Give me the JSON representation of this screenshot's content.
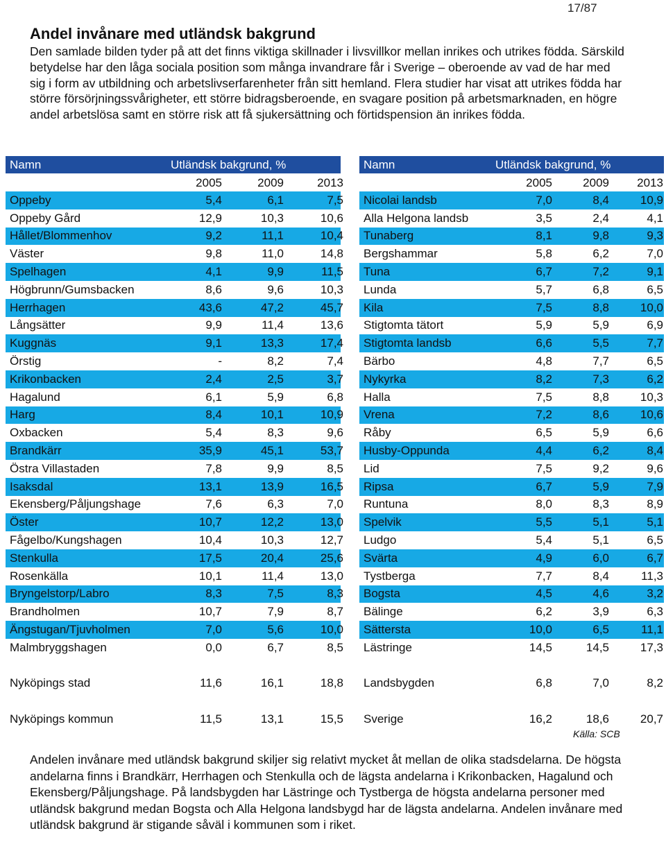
{
  "page_number": "17/87",
  "title": "Andel invånare med utländsk bakgrund",
  "intro": "Den samlade bilden tyder på att det finns viktiga skillnader i livsvillkor mellan inrikes och utrikes födda. Särskild betydelse har den låga sociala position som många invandrare får i Sverige – oberoende av vad de har med sig i form av utbildning och arbetslivserfarenheter från sitt hemland. Flera studier har visat att utrikes födda har större försörjningssvårigheter, ett större bidragsberoende, en svagare position på arbetsmarknaden, en högre andel arbetslösa samt en större risk att få sjukersättning och förtidspension än inrikes födda.",
  "table_headers": {
    "name": "Namn",
    "share": "Utländsk bakgrund, %",
    "y1": "2005",
    "y2": "2009",
    "y3": "2013"
  },
  "left_rows": [
    [
      "Oppeby",
      "5,4",
      "6,1",
      "7,5"
    ],
    [
      "Oppeby Gård",
      "12,9",
      "10,3",
      "10,6"
    ],
    [
      "Hållet/Blommenhov",
      "9,2",
      "11,1",
      "10,4"
    ],
    [
      "Väster",
      "9,8",
      "11,0",
      "14,8"
    ],
    [
      "Spelhagen",
      "4,1",
      "9,9",
      "11,5"
    ],
    [
      "Högbrunn/Gumsbacken",
      "8,6",
      "9,6",
      "10,3"
    ],
    [
      "Herrhagen",
      "43,6",
      "47,2",
      "45,7"
    ],
    [
      "Långsätter",
      "9,9",
      "11,4",
      "13,6"
    ],
    [
      "Kuggnäs",
      "9,1",
      "13,3",
      "17,4"
    ],
    [
      "Örstig",
      "-",
      "8,2",
      "7,4"
    ],
    [
      "Krikonbacken",
      "2,4",
      "2,5",
      "3,7"
    ],
    [
      "Hagalund",
      "6,1",
      "5,9",
      "6,8"
    ],
    [
      "Harg",
      "8,4",
      "10,1",
      "10,9"
    ],
    [
      "Oxbacken",
      "5,4",
      "8,3",
      "9,6"
    ],
    [
      "Brandkärr",
      "35,9",
      "45,1",
      "53,7"
    ],
    [
      "Östra Villastaden",
      "7,8",
      "9,9",
      "8,5"
    ],
    [
      "Isaksdal",
      "13,1",
      "13,9",
      "16,5"
    ],
    [
      "Ekensberg/Påljungshage",
      "7,6",
      "6,3",
      "7,0"
    ],
    [
      "Öster",
      "10,7",
      "12,2",
      "13,0"
    ],
    [
      "Fågelbo/Kungshagen",
      "10,4",
      "10,3",
      "12,7"
    ],
    [
      "Stenkulla",
      "17,5",
      "20,4",
      "25,6"
    ],
    [
      "Rosenkälla",
      "10,1",
      "11,4",
      "13,0"
    ],
    [
      "Bryngelstorp/Labro",
      "8,3",
      "7,5",
      "8,3"
    ],
    [
      "Brandholmen",
      "10,7",
      "7,9",
      "8,7"
    ],
    [
      "Ängstugan/Tjuvholmen",
      "7,0",
      "5,6",
      "10,0"
    ],
    [
      "Malmbryggshagen",
      "0,0",
      "6,7",
      "8,5"
    ]
  ],
  "right_rows": [
    [
      "Nicolai landsb",
      "7,0",
      "8,4",
      "10,9"
    ],
    [
      "Alla Helgona landsb",
      "3,5",
      "2,4",
      "4,1"
    ],
    [
      "Tunaberg",
      "8,1",
      "9,8",
      "9,3"
    ],
    [
      "Bergshammar",
      "5,8",
      "6,2",
      "7,0"
    ],
    [
      "Tuna",
      "6,7",
      "7,2",
      "9,1"
    ],
    [
      "Lunda",
      "5,7",
      "6,8",
      "6,5"
    ],
    [
      "Kila",
      "7,5",
      "8,8",
      "10,0"
    ],
    [
      "Stigtomta tätort",
      "5,9",
      "5,9",
      "6,9"
    ],
    [
      "Stigtomta landsb",
      "6,6",
      "5,5",
      "7,7"
    ],
    [
      "Bärbo",
      "4,8",
      "7,7",
      "6,5"
    ],
    [
      "Nykyrka",
      "8,2",
      "7,3",
      "6,2"
    ],
    [
      "Halla",
      "7,5",
      "8,8",
      "10,3"
    ],
    [
      "Vrena",
      "7,2",
      "8,6",
      "10,6"
    ],
    [
      "Råby",
      "6,5",
      "5,9",
      "6,6"
    ],
    [
      "Husby-Oppunda",
      "4,4",
      "6,2",
      "8,4"
    ],
    [
      "Lid",
      "7,5",
      "9,2",
      "9,6"
    ],
    [
      "Ripsa",
      "6,7",
      "5,9",
      "7,9"
    ],
    [
      "Runtuna",
      "8,0",
      "8,3",
      "8,9"
    ],
    [
      "Spelvik",
      "5,5",
      "5,1",
      "5,1"
    ],
    [
      "Ludgo",
      "5,4",
      "5,1",
      "6,5"
    ],
    [
      "Svärta",
      "4,9",
      "6,0",
      "6,7"
    ],
    [
      "Tystberga",
      "7,7",
      "8,4",
      "11,3"
    ],
    [
      "Bogsta",
      "4,5",
      "4,6",
      "3,2"
    ],
    [
      "Bälinge",
      "6,2",
      "3,9",
      "6,3"
    ],
    [
      "Sättersta",
      "10,0",
      "6,5",
      "11,1"
    ],
    [
      "Lästringe",
      "14,5",
      "14,5",
      "17,3"
    ]
  ],
  "summary_left": [
    [
      "Nyköpings stad",
      "11,6",
      "16,1",
      "18,8"
    ],
    [
      "Nyköpings kommun",
      "11,5",
      "13,1",
      "15,5"
    ]
  ],
  "summary_right": [
    [
      "Landsbygden",
      "6,8",
      "7,0",
      "8,2"
    ],
    [
      "Sverige",
      "16,2",
      "18,6",
      "20,7"
    ]
  ],
  "source": "Källa: SCB",
  "outro": "Andelen invånare med utländsk bakgrund skiljer sig relativt mycket åt mellan de olika stadsdelarna. De högsta andelarna finns i Brandkärr, Herrhagen och Stenkulla och de lägsta andelarna i Krikonbacken, Hagalund och Ekensberg/Påljungshage. På landsbygden har Lästringe och Tystberga de högsta andelarna personer med utländsk bakgrund medan Bogsta och Alla Helgona landsbygd har de lägsta andelarna. Andelen invånare med utländsk bakgrund är stigande såväl i kommunen som i riket.",
  "colors": {
    "header_bg": "#1f4e9f",
    "stripe_bg": "#17a9e5"
  }
}
